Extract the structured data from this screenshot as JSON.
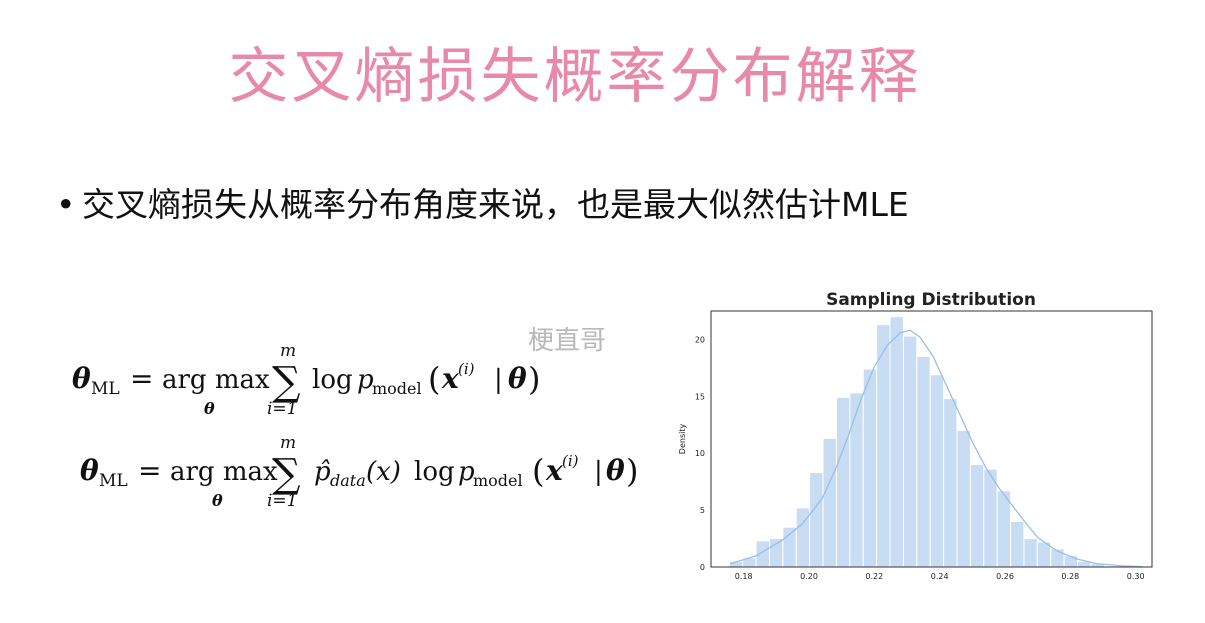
{
  "slide": {
    "title": "交叉熵损失概率分布解释",
    "bullet_text": "交叉熵损失从概率分布角度来说，也是最大似然估计MLE",
    "watermark": "梗直哥"
  },
  "formulas": {
    "eq1": {
      "lhs": "θ",
      "lhs_sub": "ML",
      "equals": "=",
      "op": "arg max",
      "op_sub": "θ",
      "sum_top": "m",
      "sum_bottom": "i=1",
      "body_pre": "log",
      "p": "p",
      "p_sub": "model",
      "x": "x",
      "x_sup": "(i)",
      "bar": "|",
      "theta": "θ"
    },
    "eq2": {
      "lhs": "θ",
      "lhs_sub": "ML",
      "equals": "=",
      "op": "arg max",
      "op_sub": "θ",
      "sum_top": "m",
      "sum_bottom": "i=1",
      "phat": "p̂",
      "phat_sub": "data",
      "phat_arg": "(x)",
      "body_pre": "log",
      "p": "p",
      "p_sub": "model",
      "x": "x",
      "x_sup": "(i)",
      "bar": "|",
      "theta": "θ"
    }
  },
  "chart_data": {
    "type": "bar",
    "title": "Sampling Distribution",
    "xlabel": "",
    "ylabel": "Density",
    "xlim": [
      0.17,
      0.305
    ],
    "ylim": [
      0,
      22.5
    ],
    "x_ticks": [
      0.18,
      0.2,
      0.22,
      0.24,
      0.26,
      0.28,
      0.3
    ],
    "x_tick_labels": [
      "0.18",
      "0.20",
      "0.22",
      "0.24",
      "0.26",
      "0.28",
      "0.30"
    ],
    "y_ticks": [
      0,
      5,
      10,
      15,
      20
    ],
    "y_tick_labels": [
      "0",
      "5",
      "10",
      "15",
      "20"
    ],
    "bin_left_edges": [
      0.1756,
      0.1797,
      0.1838,
      0.1879,
      0.192,
      0.1961,
      0.2002,
      0.2043,
      0.2084,
      0.2125,
      0.2166,
      0.2207,
      0.2248,
      0.2289,
      0.233,
      0.2371,
      0.2412,
      0.2453,
      0.2494,
      0.2535,
      0.2576,
      0.2617,
      0.2658,
      0.2699,
      0.274,
      0.2781,
      0.2822,
      0.2863,
      0.2904
    ],
    "bin_width": 0.0041,
    "values": [
      0.5,
      0.8,
      2.3,
      2.5,
      3.5,
      5.2,
      8.3,
      11.3,
      14.9,
      15.3,
      17.4,
      21.3,
      22.0,
      20.3,
      18.5,
      16.9,
      14.8,
      12.0,
      9.0,
      8.6,
      6.7,
      4.0,
      2.5,
      2.2,
      1.6,
      1.0,
      0.5,
      0.3,
      0.1
    ],
    "kde_x": [
      0.176,
      0.184,
      0.192,
      0.198,
      0.204,
      0.208,
      0.212,
      0.216,
      0.22,
      0.224,
      0.228,
      0.231,
      0.234,
      0.238,
      0.242,
      0.246,
      0.25,
      0.254,
      0.258,
      0.262,
      0.266,
      0.27,
      0.276,
      0.282,
      0.288,
      0.296,
      0.302
    ],
    "kde_y": [
      0.3,
      1.0,
      2.4,
      3.8,
      6.0,
      8.5,
      11.5,
      14.8,
      17.6,
      19.5,
      20.6,
      20.8,
      20.2,
      18.5,
      16.0,
      13.5,
      11.0,
      8.8,
      7.0,
      5.5,
      4.0,
      2.6,
      1.4,
      0.7,
      0.3,
      0.1,
      0.03
    ],
    "bar_color": "#c8dcf4",
    "line_color": "#9bbfe3",
    "grid": false
  }
}
